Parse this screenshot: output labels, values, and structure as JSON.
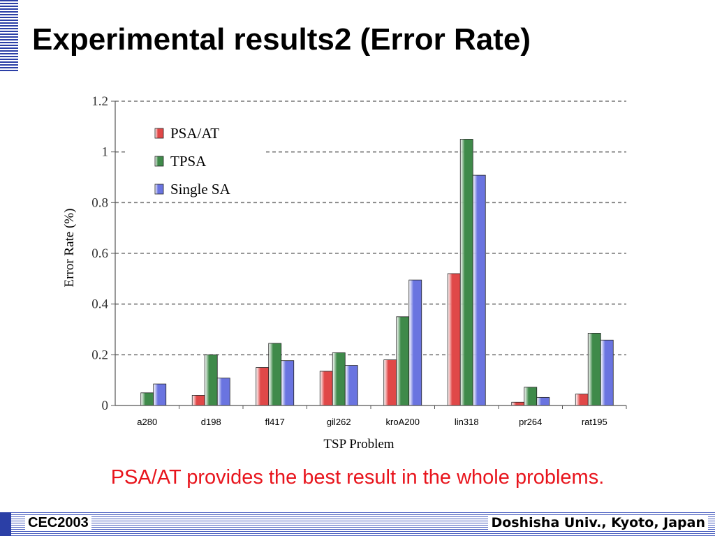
{
  "slide": {
    "title": "Experimental results2 (Error Rate)",
    "conclusion": "PSA/AT provides the best result in the whole problems.",
    "footer_left": "CEC2003",
    "footer_right": "Doshisha Univ., Kyoto, Japan"
  },
  "colors": {
    "accent_blue": "#2b3fa6",
    "conclusion_red": "#e8141c"
  },
  "chart_data": {
    "type": "bar",
    "title": "",
    "xlabel": "TSP Problem",
    "ylabel": "Error Rate (%)",
    "ylim": [
      0,
      1.2
    ],
    "yticks": [
      0,
      0.2,
      0.4,
      0.6,
      0.8,
      1,
      1.2
    ],
    "ytick_labels": [
      "0",
      "0.2",
      "0.4",
      "0.6",
      "0.8",
      "1",
      "1.2"
    ],
    "grid": true,
    "legend": "top-left",
    "categories": [
      "a280",
      "d198",
      "fl417",
      "gil262",
      "kroA200",
      "lin318",
      "pr264",
      "rat195"
    ],
    "series": [
      {
        "name": "PSA/AT",
        "color": "#e04848",
        "values": [
          0,
          0.04,
          0.15,
          0.135,
          0.18,
          0.52,
          0.013,
          0.045
        ]
      },
      {
        "name": "TPSA",
        "color": "#3f8a4a",
        "values": [
          0.05,
          0.2,
          0.245,
          0.208,
          0.35,
          1.05,
          0.072,
          0.285
        ]
      },
      {
        "name": "Single SA",
        "color": "#6a74e0",
        "values": [
          0.085,
          0.108,
          0.177,
          0.158,
          0.495,
          0.908,
          0.032,
          0.258
        ]
      }
    ]
  }
}
